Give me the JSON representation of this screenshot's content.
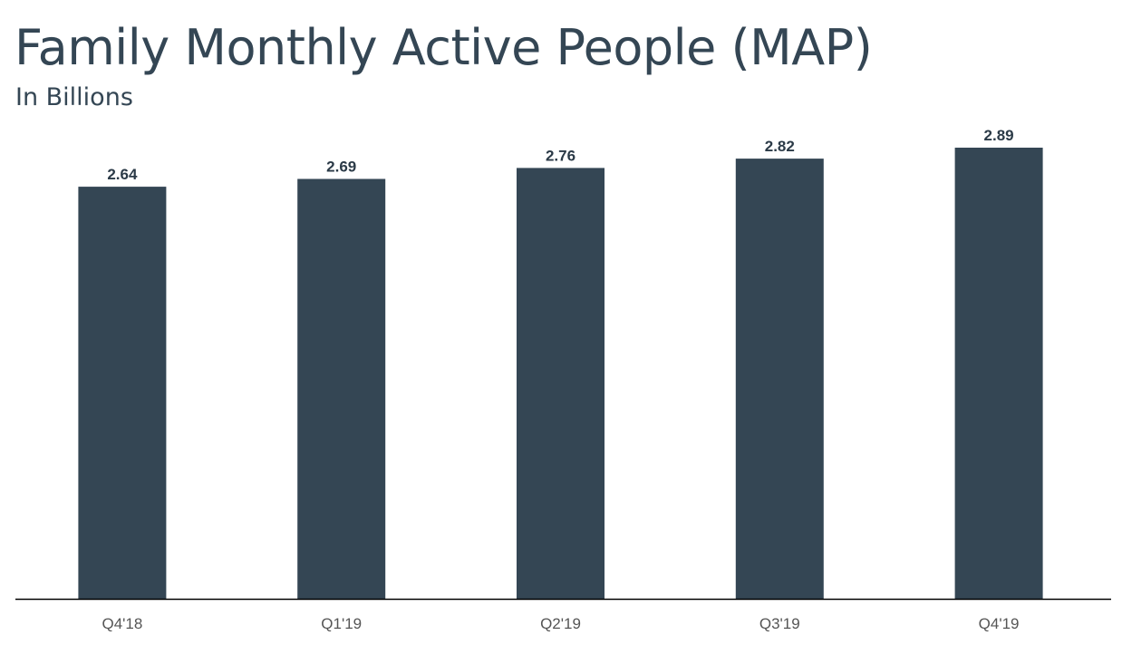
{
  "chart_data": {
    "type": "bar",
    "title": "Family Monthly Active People (MAP)",
    "subtitle": "In Billions",
    "xlabel": "",
    "ylabel": "",
    "categories": [
      "Q4'18",
      "Q1'19",
      "Q2'19",
      "Q3'19",
      "Q4'19"
    ],
    "values": [
      2.64,
      2.69,
      2.76,
      2.82,
      2.89
    ],
    "value_labels": [
      "2.64",
      "2.69",
      "2.76",
      "2.82",
      "2.89"
    ],
    "ylim": [
      0,
      2.89
    ],
    "grid": false,
    "legend": "none",
    "colors": {
      "bar": "#344654",
      "text": "#344654",
      "value_label": "#2b3a47",
      "tick_label": "#555555",
      "axis": "#000000"
    }
  }
}
